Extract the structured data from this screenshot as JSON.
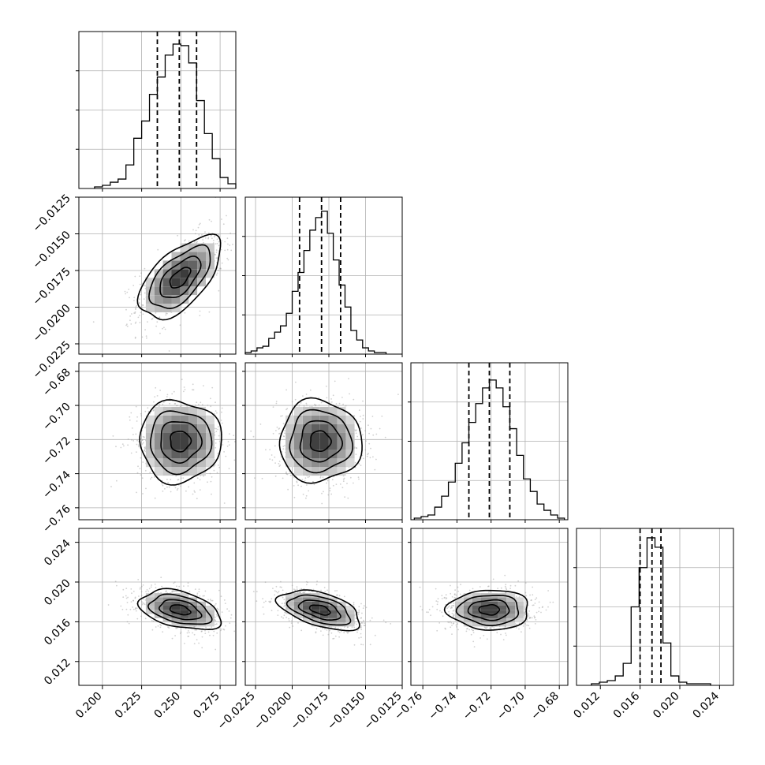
{
  "chart_data": {
    "type": "corner",
    "grid": true,
    "title": "",
    "parameters": [
      {
        "range": [
          0.185,
          0.285
        ],
        "ticks": [
          0.2,
          0.225,
          0.25,
          0.275
        ],
        "tick_labels": [
          "0.200",
          "0.225",
          "0.250",
          "0.275"
        ],
        "quantiles": [
          0.235,
          0.249,
          0.26
        ],
        "hist_edges": [
          0.195,
          0.2,
          0.205,
          0.21,
          0.215,
          0.22,
          0.225,
          0.23,
          0.235,
          0.24,
          0.245,
          0.25,
          0.255,
          0.26,
          0.265,
          0.27,
          0.275,
          0.28,
          0.285
        ],
        "hist_counts": [
          1,
          2,
          4,
          6,
          15,
          32,
          43,
          60,
          71,
          85,
          92,
          91,
          80,
          56,
          35,
          19,
          7,
          3
        ],
        "hist_ymax": 100
      },
      {
        "range": [
          -0.0232,
          -0.0125
        ],
        "ticks": [
          -0.0225,
          -0.02,
          -0.0175,
          -0.015,
          -0.0125
        ],
        "tick_labels": [
          "−0.0225",
          "−0.0200",
          "−0.0175",
          "−0.0150",
          "−0.0125"
        ],
        "y_tick_labels": [
          "−0.0225",
          "−0.0200",
          "−0.0175",
          "−0.0150",
          "−0.0125"
        ],
        "quantiles": [
          -0.0195,
          -0.018,
          -0.0167
        ],
        "hist_edges": [
          -0.0232,
          -0.0228,
          -0.0224,
          -0.022,
          -0.0216,
          -0.0212,
          -0.0208,
          -0.0204,
          -0.02,
          -0.0196,
          -0.0192,
          -0.0188,
          -0.0184,
          -0.018,
          -0.0176,
          -0.0172,
          -0.0168,
          -0.0164,
          -0.016,
          -0.0156,
          -0.0152,
          -0.0148,
          -0.0144,
          -0.014,
          -0.0136
        ],
        "hist_counts": [
          1,
          2,
          4,
          5,
          10,
          14,
          18,
          26,
          40,
          52,
          66,
          79,
          87,
          91,
          77,
          60,
          44,
          30,
          15,
          9,
          4,
          2,
          1,
          1
        ],
        "hist_ymax": 100
      },
      {
        "range": [
          -0.767,
          -0.675
        ],
        "ticks": [
          -0.76,
          -0.74,
          -0.72,
          -0.7,
          -0.68
        ],
        "tick_labels": [
          "−0.76",
          "−0.74",
          "−0.72",
          "−0.70",
          "−0.68"
        ],
        "y_tick_labels": [
          "−0.76",
          "−0.74",
          "−0.72",
          "−0.70",
          "−0.68"
        ],
        "quantiles": [
          -0.733,
          -0.721,
          -0.709
        ],
        "hist_edges": [
          -0.765,
          -0.761,
          -0.757,
          -0.753,
          -0.749,
          -0.745,
          -0.741,
          -0.737,
          -0.733,
          -0.729,
          -0.725,
          -0.721,
          -0.717,
          -0.713,
          -0.709,
          -0.705,
          -0.701,
          -0.697,
          -0.693,
          -0.689,
          -0.685,
          -0.681,
          -0.677
        ],
        "hist_counts": [
          1,
          2,
          3,
          8,
          15,
          24,
          36,
          49,
          62,
          74,
          84,
          89,
          84,
          72,
          58,
          41,
          26,
          18,
          10,
          6,
          3,
          1
        ],
        "hist_ymax": 100
      },
      {
        "range": [
          0.0096,
          0.0254
        ],
        "ticks": [
          0.012,
          0.016,
          0.02,
          0.024
        ],
        "tick_labels": [
          "0.012",
          "0.016",
          "0.020",
          "0.024"
        ],
        "y_tick_labels": [
          "0.012",
          "0.016",
          "0.020",
          "0.024"
        ],
        "quantiles": [
          0.016,
          0.0172,
          0.0181
        ],
        "hist_edges": [
          0.0111,
          0.0119,
          0.0127,
          0.0135,
          0.0143,
          0.0151,
          0.0159,
          0.0167,
          0.0175,
          0.0183,
          0.0191,
          0.0199,
          0.0207,
          0.0215,
          0.0223,
          0.0231
        ],
        "hist_counts": [
          1,
          2,
          3,
          6,
          14,
          50,
          75,
          94,
          88,
          27,
          6,
          2,
          1,
          1,
          1
        ],
        "hist_ymax": 100
      }
    ],
    "pairs": [
      {
        "x": 0,
        "y": 1,
        "center": [
          0.2495,
          -0.018
        ],
        "sigma": [
          0.013,
          0.0014
        ],
        "rho": 0.6
      },
      {
        "x": 0,
        "y": 2,
        "center": [
          0.2495,
          -0.721
        ],
        "sigma": [
          0.013,
          0.012
        ],
        "rho": 0.0
      },
      {
        "x": 1,
        "y": 2,
        "center": [
          -0.0181,
          -0.721
        ],
        "sigma": [
          0.0014,
          0.012
        ],
        "rho": 0.0
      },
      {
        "x": 0,
        "y": 3,
        "center": [
          0.2495,
          0.0172
        ],
        "sigma": [
          0.013,
          0.001
        ],
        "rho": -0.4
      },
      {
        "x": 1,
        "y": 3,
        "center": [
          -0.0181,
          0.0172
        ],
        "sigma": [
          0.0014,
          0.001
        ],
        "rho": -0.5
      },
      {
        "x": 2,
        "y": 3,
        "center": [
          -0.721,
          0.0172
        ],
        "sigma": [
          0.012,
          0.001
        ],
        "rho": 0.0
      }
    ],
    "contour_levels_sigma": [
      0.5,
      1.0,
      1.5,
      2.0
    ]
  }
}
